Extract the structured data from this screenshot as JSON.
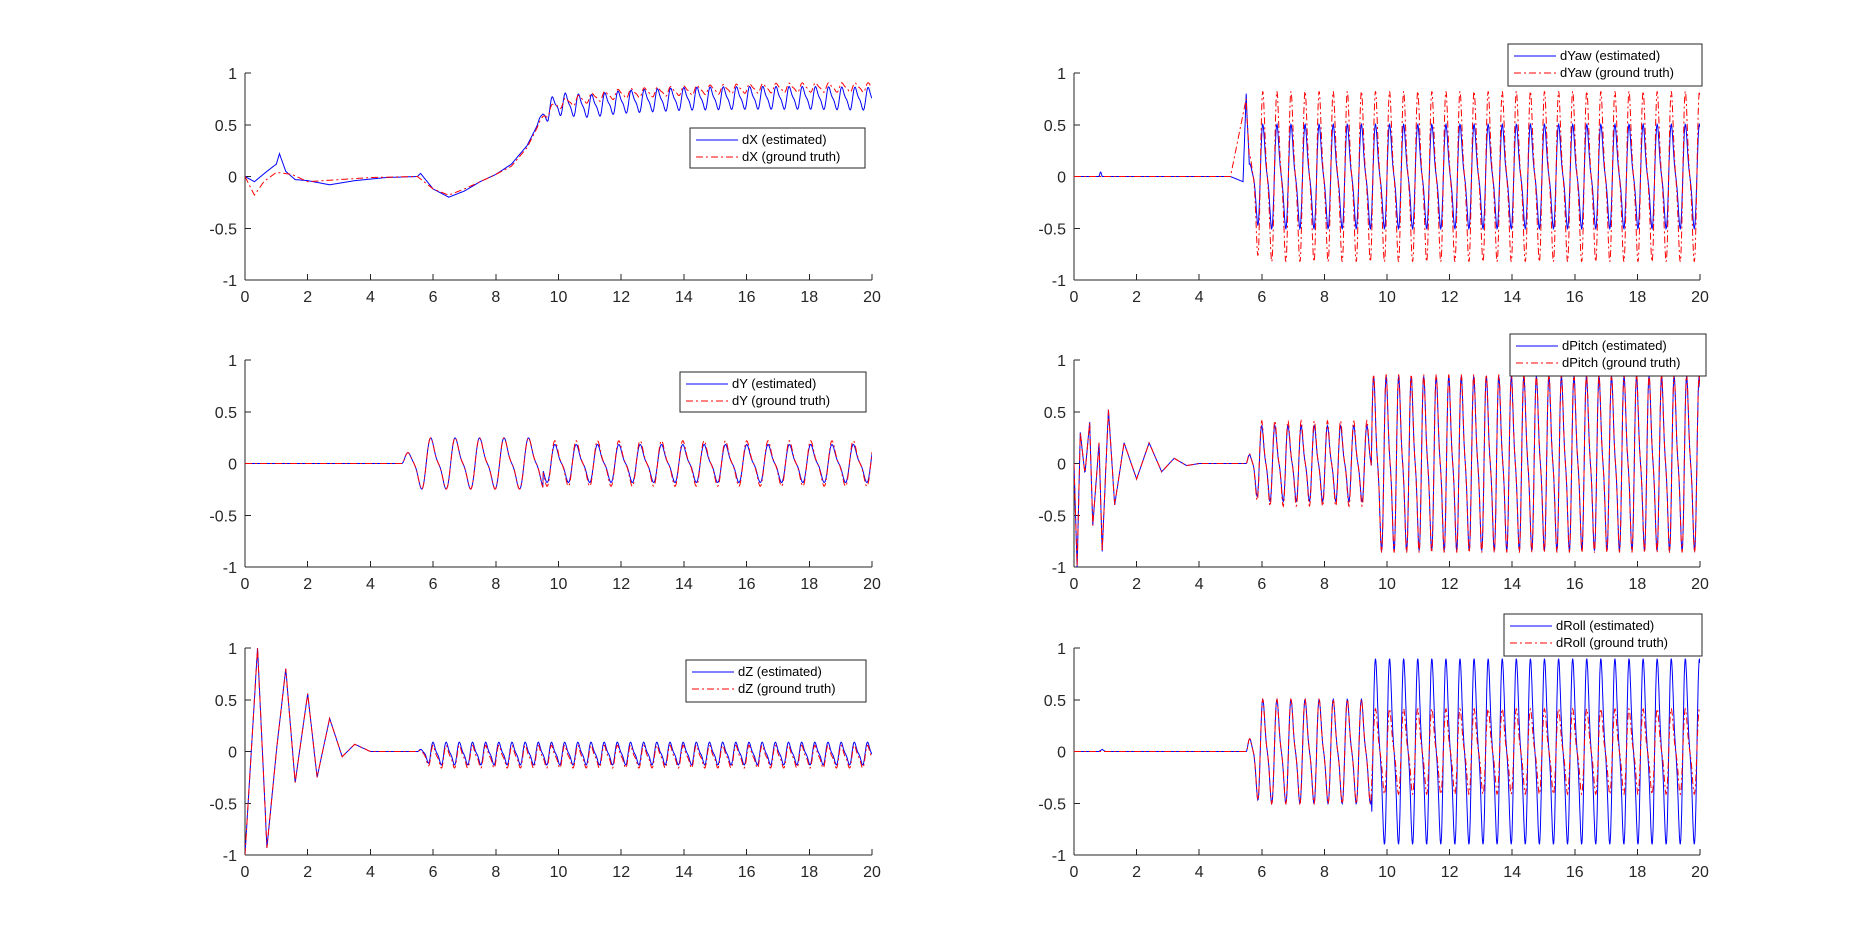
{
  "chart_data": [
    {
      "type": "line",
      "title": "",
      "xlabel": "",
      "ylabel": "",
      "xlim": [
        0,
        20
      ],
      "ylim": [
        -1,
        1
      ],
      "xticks": [
        "0",
        "2",
        "4",
        "6",
        "8",
        "10",
        "12",
        "14",
        "16",
        "18",
        "20"
      ],
      "yticks": [
        "-1",
        "-0.5",
        "0",
        "0.5",
        "1"
      ],
      "legend_position": "right",
      "colors": {
        "estimated": "#0000ff",
        "ground_truth": "#ff0000"
      },
      "series": [
        {
          "name": "dX (estimated)",
          "style": "solid",
          "x": [
            0,
            0.3,
            0.7,
            1.0,
            1.1,
            1.3,
            1.6,
            2.0,
            2.7,
            3.5,
            4.5,
            5.5,
            5.6,
            6.0,
            6.5,
            7.0,
            7.5,
            8.0,
            8.5,
            9.0,
            9.5,
            10.0,
            11.0,
            12.0,
            14.0,
            16.0,
            18.0,
            20.0
          ],
          "values": [
            0.0,
            -0.05,
            0.05,
            0.12,
            0.22,
            0.05,
            -0.03,
            -0.04,
            -0.08,
            -0.04,
            -0.01,
            0.0,
            0.03,
            -0.12,
            -0.2,
            -0.14,
            -0.05,
            0.02,
            0.12,
            0.3,
            0.6,
            0.7,
            0.68,
            0.72,
            0.75,
            0.76,
            0.76,
            0.75
          ],
          "oscillation": {
            "start": 9.3,
            "period": 0.42,
            "amplitude": 0.12
          }
        },
        {
          "name": "dX (ground truth)",
          "style": "dashdot",
          "x": [
            0,
            0.3,
            0.6,
            1.0,
            1.5,
            2.0,
            3.0,
            4.0,
            5.5,
            6.0,
            6.5,
            7.0,
            7.5,
            8.0,
            8.5,
            9.0,
            9.5,
            10.0,
            11.0,
            12.0,
            14.0,
            16.0,
            18.0,
            20.0
          ],
          "values": [
            0.0,
            -0.18,
            -0.05,
            0.04,
            0.02,
            -0.05,
            -0.03,
            -0.01,
            0.0,
            -0.12,
            -0.18,
            -0.12,
            -0.05,
            0.02,
            0.1,
            0.28,
            0.58,
            0.7,
            0.76,
            0.8,
            0.83,
            0.85,
            0.86,
            0.86
          ],
          "oscillation": {
            "start": 9.3,
            "period": 0.42,
            "amplitude": 0.05
          }
        }
      ]
    },
    {
      "type": "line",
      "title": "",
      "xlabel": "",
      "ylabel": "",
      "xlim": [
        0,
        20
      ],
      "ylim": [
        -1,
        1
      ],
      "xticks": [
        "0",
        "2",
        "4",
        "6",
        "8",
        "10",
        "12",
        "14",
        "16",
        "18",
        "20"
      ],
      "yticks": [
        "-1",
        "-0.5",
        "0",
        "0.5",
        "1"
      ],
      "legend_position": "top-right",
      "colors": {
        "estimated": "#0000ff",
        "ground_truth": "#ff0000"
      },
      "series": [
        {
          "name": "dY (estimated)",
          "style": "solid",
          "x": [
            0,
            5.0,
            5.5,
            6.0,
            7.0,
            8.0,
            9.0,
            10.0,
            12.0,
            14.0,
            16.0,
            18.0,
            20.0
          ],
          "values": [
            0,
            0,
            0,
            0,
            0,
            0,
            0,
            0,
            0,
            0,
            0,
            0,
            0
          ],
          "oscillation": {
            "start": 5.0,
            "period": 0.78,
            "amplitude": 0.27,
            "period_late": 0.68,
            "amplitude_late": 0.2
          }
        },
        {
          "name": "dY (ground truth)",
          "style": "dashdot",
          "x": [
            0,
            5.0,
            20.0
          ],
          "values": [
            0,
            0,
            0
          ],
          "oscillation": {
            "start": 5.0,
            "period": 0.78,
            "amplitude": 0.27,
            "period_late": 0.68,
            "amplitude_late": 0.24
          }
        }
      ]
    },
    {
      "type": "line",
      "title": "",
      "xlabel": "",
      "ylabel": "",
      "xlim": [
        0,
        20
      ],
      "ylim": [
        -1,
        1
      ],
      "xticks": [
        "0",
        "2",
        "4",
        "6",
        "8",
        "10",
        "12",
        "14",
        "16",
        "18",
        "20"
      ],
      "yticks": [
        "-1",
        "-0.5",
        "0",
        "0.5",
        "1"
      ],
      "legend_position": "top-right",
      "colors": {
        "estimated": "#0000ff",
        "ground_truth": "#ff0000"
      },
      "series": [
        {
          "name": "dZ (estimated)",
          "style": "solid",
          "x": [
            0,
            0.2,
            0.4,
            0.7,
            1.0,
            1.3,
            1.6,
            2.0,
            2.3,
            2.7,
            3.1,
            3.5,
            4.0,
            5.5
          ],
          "values": [
            -1.0,
            0.0,
            1.0,
            -0.93,
            0.0,
            0.8,
            -0.3,
            0.56,
            -0.25,
            0.32,
            -0.05,
            0.07,
            0.0,
            0.0
          ],
          "oscillation": {
            "start": 5.5,
            "period": 0.42,
            "amplitude": 0.12,
            "bias": -0.02
          }
        },
        {
          "name": "dZ (ground truth)",
          "style": "dashdot",
          "x": [
            0,
            0.2,
            0.4,
            0.7,
            1.0,
            1.3,
            1.6,
            2.0,
            2.3,
            2.7,
            3.1,
            3.5,
            4.0,
            5.5
          ],
          "values": [
            -1.0,
            0.0,
            1.0,
            -0.93,
            0.0,
            0.8,
            -0.3,
            0.56,
            -0.25,
            0.32,
            -0.05,
            0.07,
            0.0,
            0.0
          ],
          "oscillation": {
            "start": 5.5,
            "period": 0.42,
            "amplitude": 0.12,
            "bias": -0.05
          }
        }
      ]
    },
    {
      "type": "line",
      "title": "",
      "xlabel": "",
      "ylabel": "",
      "xlim": [
        0,
        20
      ],
      "ylim": [
        -1,
        1
      ],
      "xticks": [
        "0",
        "2",
        "4",
        "6",
        "8",
        "10",
        "12",
        "14",
        "16",
        "18",
        "20"
      ],
      "yticks": [
        "-1",
        "-0.5",
        "0",
        "0.5",
        "1"
      ],
      "legend_position": "top-right",
      "colors": {
        "estimated": "#0000ff",
        "ground_truth": "#ff0000"
      },
      "series": [
        {
          "name": "dYaw (estimated)",
          "style": "solid",
          "x": [
            0,
            0.8,
            0.85,
            0.9,
            5.0,
            5.4,
            5.5,
            5.6,
            20.0
          ],
          "values": [
            0,
            0,
            0.05,
            0,
            0,
            -0.05,
            0.8,
            0.0,
            0.0
          ],
          "oscillation": {
            "start": 5.5,
            "period": 0.45,
            "amplitude": 0.55
          }
        },
        {
          "name": "dYaw (ground truth)",
          "style": "dashdot",
          "x": [
            0,
            5.0,
            5.5,
            5.6,
            20.0
          ],
          "values": [
            0,
            0,
            0.75,
            0.0,
            0.0
          ],
          "oscillation": {
            "start": 5.5,
            "period": 0.45,
            "amplitude": 0.9
          }
        }
      ]
    },
    {
      "type": "line",
      "title": "",
      "xlabel": "",
      "ylabel": "",
      "xlim": [
        0,
        20
      ],
      "ylim": [
        -1,
        1
      ],
      "xticks": [
        "0",
        "2",
        "4",
        "6",
        "8",
        "10",
        "12",
        "14",
        "16",
        "18",
        "20"
      ],
      "yticks": [
        "-1",
        "-0.5",
        "0",
        "0.5",
        "1"
      ],
      "legend_position": "top-right",
      "colors": {
        "estimated": "#0000ff",
        "ground_truth": "#ff0000"
      },
      "series": [
        {
          "name": "dPitch (estimated)",
          "style": "solid",
          "x": [
            0,
            0.1,
            0.2,
            0.35,
            0.5,
            0.6,
            0.8,
            0.9,
            1.1,
            1.3,
            1.6,
            2.0,
            2.4,
            2.8,
            3.2,
            3.6,
            4.0,
            5.5
          ],
          "values": [
            0,
            -1.0,
            0.3,
            -0.1,
            0.4,
            -0.6,
            0.2,
            -0.85,
            0.52,
            -0.4,
            0.2,
            -0.15,
            0.2,
            -0.08,
            0.05,
            -0.02,
            0.0,
            0.0
          ],
          "oscillation": {
            "start": 5.5,
            "period": 0.42,
            "amplitude": 0.4,
            "period_late": 0.4,
            "amplitude_late": 0.92
          }
        },
        {
          "name": "dPitch (ground truth)",
          "style": "dashdot",
          "x": [
            0,
            0.1,
            0.2,
            0.35,
            0.5,
            0.6,
            0.8,
            0.9,
            1.1,
            1.3,
            1.6,
            2.0,
            2.4,
            2.8,
            3.2,
            3.6,
            4.0,
            5.5
          ],
          "values": [
            0,
            -1.0,
            0.3,
            -0.1,
            0.4,
            -0.6,
            0.2,
            -0.85,
            0.52,
            -0.4,
            0.2,
            -0.15,
            0.2,
            -0.08,
            0.05,
            -0.02,
            0.0,
            0.0
          ],
          "oscillation": {
            "start": 5.5,
            "period": 0.42,
            "amplitude": 0.45,
            "period_late": 0.4,
            "amplitude_late": 0.94
          }
        }
      ]
    },
    {
      "type": "line",
      "title": "",
      "xlabel": "",
      "ylabel": "",
      "xlim": [
        0,
        20
      ],
      "ylim": [
        -1,
        1
      ],
      "xticks": [
        "0",
        "2",
        "4",
        "6",
        "8",
        "10",
        "12",
        "14",
        "16",
        "18",
        "20"
      ],
      "yticks": [
        "-1",
        "-0.5",
        "0",
        "0.5",
        "1"
      ],
      "legend_position": "top-right",
      "colors": {
        "estimated": "#0000ff",
        "ground_truth": "#ff0000"
      },
      "series": [
        {
          "name": "dRoll (estimated)",
          "style": "solid",
          "x": [
            0,
            0.8,
            0.9,
            1.0,
            5.0,
            5.5,
            20.0
          ],
          "values": [
            0,
            0,
            0.02,
            0,
            0,
            0.0,
            0.0
          ],
          "oscillation": {
            "start": 5.5,
            "period": 0.45,
            "amplitude": 0.55,
            "period_late": 0.45,
            "amplitude_late": 0.98
          }
        },
        {
          "name": "dRoll (ground truth)",
          "style": "dashdot",
          "x": [
            0,
            5.0,
            5.5,
            20.0
          ],
          "values": [
            0,
            0,
            0.0,
            0.0
          ],
          "oscillation": {
            "start": 5.5,
            "period": 0.45,
            "amplitude": 0.55,
            "period_late": 0.45,
            "amplitude_late": 0.45
          }
        }
      ]
    }
  ]
}
